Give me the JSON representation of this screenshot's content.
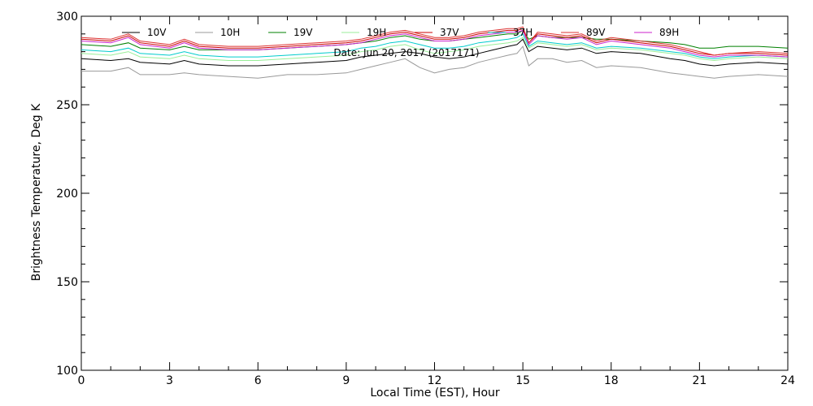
{
  "chart_data": {
    "type": "line",
    "title": "",
    "annotation": "Date: Jun 20, 2017 (2017171)",
    "xlabel": "Local Time (EST), Hour",
    "ylabel": "Brightness Temperature, Deg K",
    "xlim": [
      0,
      24
    ],
    "ylim": [
      100,
      300
    ],
    "xticks": [
      0,
      3,
      6,
      9,
      12,
      15,
      18,
      21,
      24
    ],
    "yticks": [
      100,
      150,
      200,
      250,
      300
    ],
    "xminor_step": 1,
    "yminor_step": 10,
    "grid": false,
    "legend_position": "top",
    "x": [
      0,
      1,
      1.6,
      2,
      3,
      3.5,
      4,
      5,
      6,
      7,
      8,
      9,
      9.5,
      10,
      10.5,
      11,
      11.5,
      12,
      12.5,
      13,
      13.5,
      14,
      14.5,
      14.8,
      15,
      15.2,
      15.5,
      16,
      16.5,
      17,
      17.5,
      18,
      19,
      20,
      20.5,
      21,
      21.5,
      22,
      23,
      24
    ],
    "series": [
      {
        "name": "10V",
        "color": "#000000",
        "values": [
          276,
          275,
          276,
          274,
          273,
          275,
          273,
          272,
          272,
          273,
          274,
          275,
          277,
          278,
          279,
          280,
          279,
          277,
          276,
          277,
          279,
          281,
          283,
          284,
          287,
          280,
          283,
          282,
          281,
          282,
          279,
          280,
          279,
          276,
          275,
          273,
          272,
          273,
          274,
          273
        ]
      },
      {
        "name": "10H",
        "color": "#999999",
        "values": [
          269,
          269,
          271,
          267,
          267,
          268,
          267,
          266,
          265,
          267,
          267,
          268,
          270,
          272,
          274,
          276,
          271,
          268,
          270,
          271,
          274,
          276,
          278,
          279,
          283,
          272,
          276,
          276,
          274,
          275,
          271,
          272,
          271,
          268,
          267,
          266,
          265,
          266,
          267,
          266
        ]
      },
      {
        "name": "19V",
        "color": "#008000",
        "values": [
          284,
          283,
          285,
          282,
          281,
          283,
          281,
          281,
          281,
          282,
          283,
          284,
          285,
          286,
          288,
          289,
          287,
          286,
          286,
          287,
          288,
          289,
          290,
          290,
          292,
          287,
          289,
          288,
          288,
          288,
          287,
          287,
          286,
          285,
          284,
          282,
          282,
          283,
          283,
          282
        ]
      },
      {
        "name": "19H",
        "color": "#99ee99",
        "values": [
          279,
          278,
          280,
          277,
          276,
          278,
          276,
          275,
          275,
          276,
          277,
          278,
          280,
          281,
          283,
          284,
          281,
          279,
          280,
          281,
          283,
          284,
          285,
          286,
          288,
          282,
          285,
          284,
          283,
          284,
          281,
          282,
          281,
          279,
          278,
          276,
          275,
          276,
          277,
          276
        ]
      },
      {
        "name": "37V",
        "color": "#cc0000",
        "values": [
          287,
          286,
          289,
          285,
          283,
          286,
          283,
          282,
          282,
          283,
          284,
          285,
          286,
          288,
          290,
          291,
          289,
          287,
          287,
          288,
          290,
          291,
          292,
          292,
          293,
          285,
          290,
          289,
          288,
          289,
          285,
          287,
          285,
          283,
          281,
          279,
          278,
          279,
          279,
          278
        ]
      },
      {
        "name": "37H",
        "color": "#00cccc",
        "values": [
          281,
          280,
          282,
          279,
          278,
          280,
          278,
          277,
          277,
          278,
          279,
          280,
          282,
          283,
          285,
          286,
          284,
          282,
          282,
          283,
          285,
          286,
          287,
          288,
          290,
          283,
          286,
          285,
          284,
          285,
          282,
          283,
          282,
          280,
          279,
          277,
          276,
          277,
          278,
          277
        ]
      },
      {
        "name": "89V",
        "color": "#dd3333",
        "values": [
          288,
          287,
          290,
          286,
          284,
          287,
          284,
          283,
          283,
          284,
          285,
          286,
          287,
          289,
          291,
          292,
          290,
          288,
          288,
          289,
          291,
          292,
          293,
          293,
          294,
          285,
          291,
          290,
          289,
          290,
          286,
          288,
          286,
          284,
          282,
          280,
          278,
          279,
          280,
          279
        ]
      },
      {
        "name": "89H",
        "color": "#cc22cc",
        "values": [
          286,
          285,
          288,
          284,
          282,
          285,
          282,
          281,
          281,
          282,
          283,
          284,
          285,
          287,
          289,
          290,
          288,
          286,
          286,
          287,
          289,
          290,
          291,
          291,
          292,
          284,
          289,
          288,
          287,
          288,
          284,
          286,
          284,
          282,
          280,
          278,
          277,
          278,
          278,
          277
        ]
      }
    ]
  }
}
